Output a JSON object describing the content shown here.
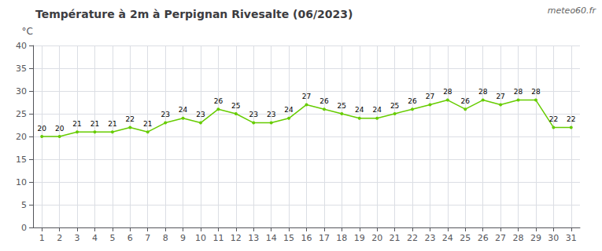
{
  "chart_data": {
    "type": "line",
    "title": "Température à 2m à Perpignan Rivesalte (06/2023)",
    "ylabel": "°C",
    "annotations": [
      "meteo60.fr"
    ],
    "x": [
      1,
      2,
      3,
      4,
      5,
      6,
      7,
      8,
      9,
      10,
      11,
      12,
      13,
      14,
      15,
      16,
      17,
      18,
      19,
      20,
      21,
      22,
      23,
      24,
      25,
      26,
      27,
      28,
      29,
      30,
      31
    ],
    "values": [
      20,
      20,
      21,
      21,
      21,
      22,
      21,
      23,
      24,
      23,
      26,
      25,
      23,
      23,
      24,
      27,
      26,
      25,
      24,
      24,
      25,
      26,
      27,
      28,
      26,
      28,
      27,
      28,
      28,
      22,
      22
    ],
    "color": "#66cc00",
    "marker": "circle",
    "xlim": [
      0.5,
      31.5
    ],
    "xticks": [
      1,
      2,
      3,
      4,
      5,
      6,
      7,
      8,
      9,
      10,
      11,
      12,
      13,
      14,
      15,
      16,
      17,
      18,
      19,
      20,
      21,
      22,
      23,
      24,
      25,
      26,
      27,
      28,
      29,
      30,
      31
    ],
    "ylim": [
      0,
      40
    ],
    "yticks": [
      0,
      5,
      10,
      15,
      20,
      25,
      30,
      35,
      40
    ],
    "grid": true,
    "data_labels": true
  }
}
